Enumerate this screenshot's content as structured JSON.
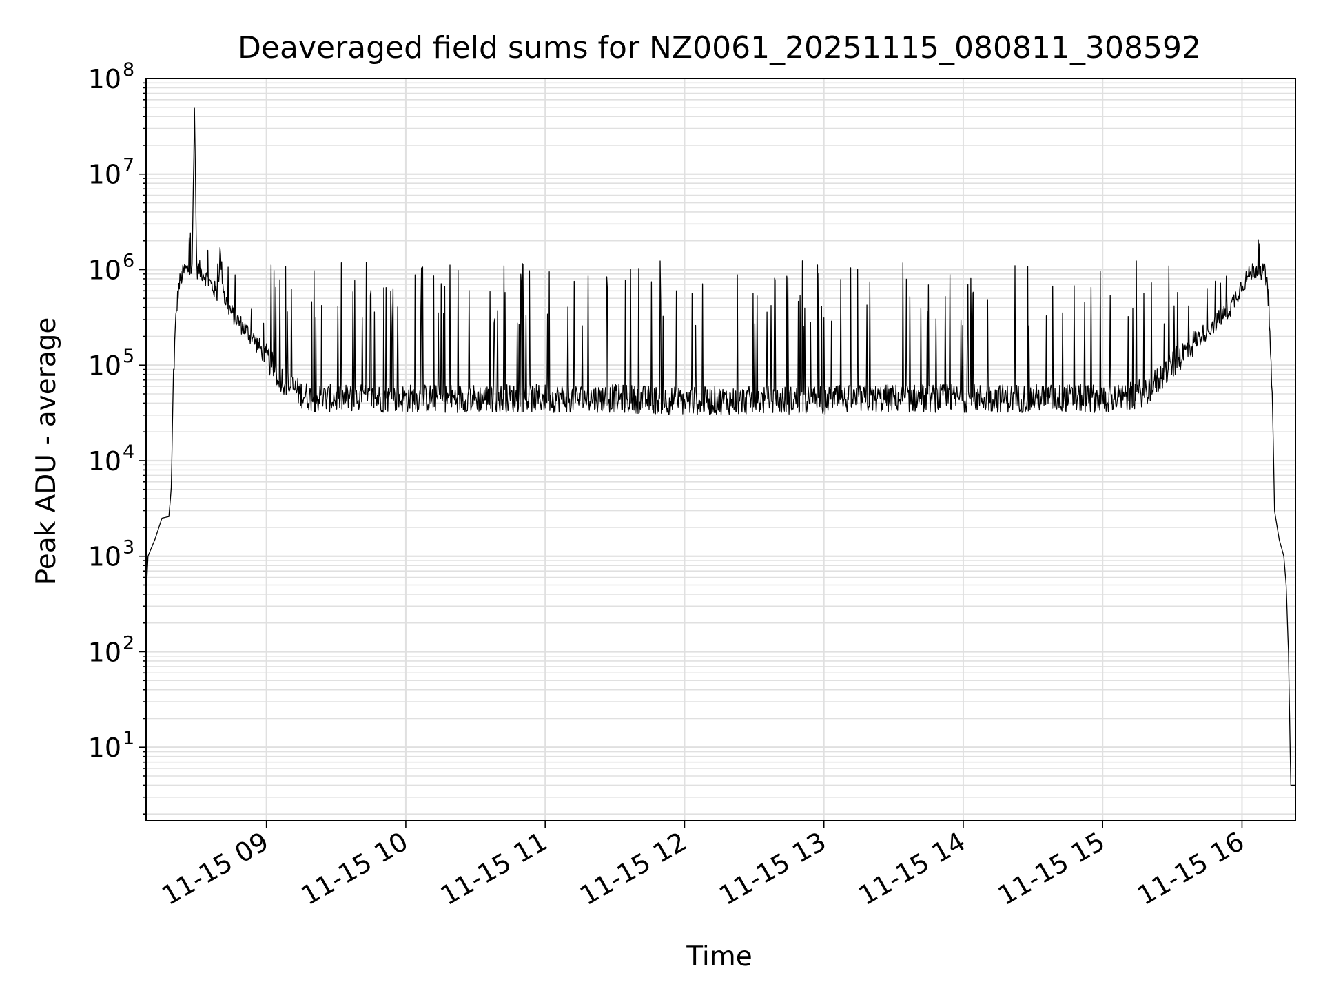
{
  "chart_data": {
    "type": "line",
    "title": "Deaveraged field sums for NZ0061_20251115_080811_308592",
    "xlabel": "Time",
    "ylabel": "Peak ADU - average",
    "xscale": "time",
    "yscale": "log",
    "xlim": [
      "2025-11-15 08:08:11",
      "2025-11-15 16:23:00"
    ],
    "ylim": [
      1.7,
      100000000
    ],
    "x_ticks": [
      "11-15 09",
      "11-15 10",
      "11-15 11",
      "11-15 12",
      "11-15 13",
      "11-15 14",
      "11-15 15",
      "11-15 16"
    ],
    "y_ticks": [
      {
        "base": "10",
        "exp": "1",
        "value": 10
      },
      {
        "base": "10",
        "exp": "2",
        "value": 100
      },
      {
        "base": "10",
        "exp": "3",
        "value": 1000
      },
      {
        "base": "10",
        "exp": "4",
        "value": 10000
      },
      {
        "base": "10",
        "exp": "5",
        "value": 100000
      },
      {
        "base": "10",
        "exp": "6",
        "value": 1000000
      },
      {
        "base": "10",
        "exp": "7",
        "value": 10000000
      },
      {
        "base": "10",
        "exp": "8",
        "value": 100000000
      }
    ],
    "grid": true,
    "line_color": "#000000",
    "grid_color": "#e0e0e0",
    "series": [
      {
        "x": [
          "08:08",
          "08:09",
          "08:12",
          "08:15",
          "08:18",
          "08:19",
          "08:20",
          "08:21",
          "08:22",
          "08:23",
          "08:25",
          "08:28",
          "08:29",
          "08:30",
          "08:31",
          "08:33",
          "08:36",
          "08:39",
          "08:40",
          "08:42",
          "08:45",
          "08:50",
          "08:55",
          "09:00",
          "09:05",
          "09:10",
          "09:15",
          "09:20",
          "09:30",
          "09:45",
          "10:00",
          "10:30",
          "11:00",
          "11:30",
          "12:00",
          "12:30",
          "13:00",
          "13:30",
          "14:00",
          "14:30",
          "15:00",
          "15:10",
          "15:20",
          "15:30",
          "15:40",
          "15:50",
          "15:55",
          "16:00",
          "16:05",
          "16:08",
          "16:10",
          "16:11",
          "16:12",
          "16:13",
          "16:14",
          "16:16",
          "16:18",
          "16:19",
          "16:20",
          "16:21",
          "16:22",
          "16:23"
        ],
        "y": [
          300,
          1000,
          1500,
          2500,
          2600,
          5000,
          80000,
          300000,
          600000,
          800000,
          1000000,
          1000000,
          50000000,
          1000000,
          1000000,
          900000,
          700000,
          550000,
          1500000,
          500000,
          350000,
          250000,
          180000,
          120000,
          80000,
          60000,
          50000,
          45000,
          45000,
          45000,
          45000,
          45000,
          45000,
          45000,
          42000,
          43000,
          43000,
          45000,
          45000,
          45000,
          45000,
          45000,
          55000,
          100000,
          180000,
          300000,
          400000,
          700000,
          1000000,
          1000000,
          900000,
          600000,
          200000,
          50000,
          3000,
          1500,
          1000,
          500,
          100,
          4,
          4,
          4
        ]
      }
    ]
  }
}
